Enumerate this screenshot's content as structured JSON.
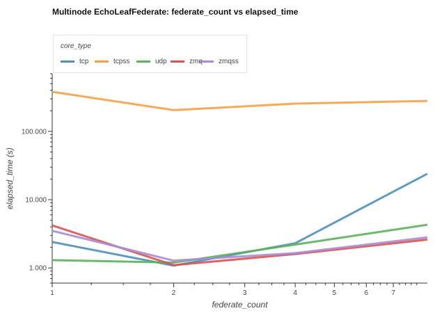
{
  "chart_data": {
    "type": "line",
    "title": "Multinode EchoLeafFederate: federate_count vs elapsed_time",
    "xlabel": "federate_count",
    "ylabel": "elapsed_time (s)",
    "x_scale": "log",
    "y_scale": "log",
    "xlim": [
      1,
      8.5
    ],
    "ylim": [
      0.6,
      700
    ],
    "x_tick_labels": [
      "1",
      "2",
      "3",
      "4",
      "5",
      "6",
      "7"
    ],
    "x_tick_values": [
      1,
      2,
      3,
      4,
      5,
      6,
      7
    ],
    "y_tick_labels": [
      "1.000",
      "10.000",
      "100.000"
    ],
    "y_tick_values": [
      1,
      10,
      100
    ],
    "grid": false,
    "legend": {
      "title": "core_type",
      "placement": "top-left"
    },
    "series": [
      {
        "name": "tcp",
        "color": "#4f8fba",
        "x": [
          1,
          2,
          4,
          8.5
        ],
        "y": [
          2.4,
          1.08,
          2.3,
          24
        ]
      },
      {
        "name": "tcpss",
        "color": "#f7a043",
        "x": [
          1,
          2,
          4,
          8.5
        ],
        "y": [
          380,
          205,
          255,
          280
        ]
      },
      {
        "name": "udp",
        "color": "#5bb35b",
        "x": [
          1,
          2,
          4,
          8.5
        ],
        "y": [
          1.3,
          1.2,
          2.2,
          4.3
        ]
      },
      {
        "name": "zmq",
        "color": "#d9534f",
        "x": [
          1,
          2,
          4,
          8.5
        ],
        "y": [
          4.2,
          1.1,
          1.6,
          2.6
        ]
      },
      {
        "name": "zmqss",
        "color": "#a98bd4",
        "x": [
          1,
          2,
          4,
          8.5
        ],
        "y": [
          3.5,
          1.28,
          1.65,
          2.8
        ]
      }
    ]
  }
}
